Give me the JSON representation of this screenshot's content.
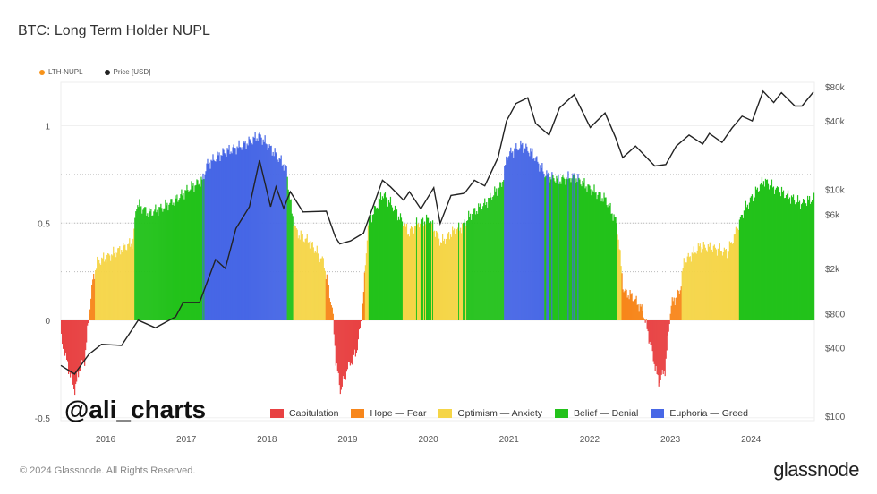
{
  "title": "BTC: Long Term Holder NUPL",
  "watermark": "@ali_charts",
  "footer": "© 2024 Glassnode. All Rights Reserved.",
  "logo": "glassnode",
  "chart_data": {
    "type": "bar",
    "title": "BTC: Long Term Holder NUPL",
    "legend_top": [
      {
        "name": "LTH-NUPL",
        "color": "#f7931a"
      },
      {
        "name": "Price [USD]",
        "color": "#222222"
      }
    ],
    "zones": [
      {
        "name": "Capitulation",
        "color": "#e84142",
        "min": -1,
        "max": 0
      },
      {
        "name": "Hope — Fear",
        "color": "#f7861b",
        "min": 0,
        "max": 0.25
      },
      {
        "name": "Optimism — Anxiety",
        "color": "#f5d547",
        "min": 0.25,
        "max": 0.5
      },
      {
        "name": "Belief — Denial",
        "color": "#23c21b",
        "min": 0.5,
        "max": 0.75
      },
      {
        "name": "Euphoria — Greed",
        "color": "#4767e6",
        "min": 0.75,
        "max": 2
      }
    ],
    "x_ticks": [
      "2016",
      "2017",
      "2018",
      "2019",
      "2020",
      "2021",
      "2022",
      "2023",
      "2024"
    ],
    "y_left_ticks": [
      "1",
      "0.5",
      "0",
      "-0.5"
    ],
    "y_left_range": [
      -0.5,
      1.0
    ],
    "y_right_ticks": [
      "$80k",
      "$40k",
      "$10k",
      "$6k",
      "$2k",
      "$800",
      "$400",
      "$100"
    ],
    "y_right_scale": "log",
    "x_range": [
      "2015-07",
      "2024-11"
    ],
    "nupl": [
      [
        "2015-07-01",
        -0.1
      ],
      [
        "2015-08-15",
        -0.3
      ],
      [
        "2015-09-01",
        -0.36
      ],
      [
        "2015-09-20",
        -0.25
      ],
      [
        "2015-10-15",
        -0.2
      ],
      [
        "2015-11-05",
        0.05
      ],
      [
        "2015-11-20",
        0.2
      ],
      [
        "2015-12-10",
        0.3
      ],
      [
        "2016-02-01",
        0.33
      ],
      [
        "2016-04-01",
        0.37
      ],
      [
        "2016-05-20",
        0.4
      ],
      [
        "2016-06-05",
        0.6
      ],
      [
        "2016-08-01",
        0.55
      ],
      [
        "2016-10-01",
        0.58
      ],
      [
        "2016-12-01",
        0.62
      ],
      [
        "2017-02-01",
        0.68
      ],
      [
        "2017-04-01",
        0.72
      ],
      [
        "2017-04-20",
        0.8
      ],
      [
        "2017-07-01",
        0.86
      ],
      [
        "2017-10-01",
        0.9
      ],
      [
        "2017-12-15",
        0.95
      ],
      [
        "2018-01-20",
        0.9
      ],
      [
        "2018-03-01",
        0.85
      ],
      [
        "2018-04-15",
        0.78
      ],
      [
        "2018-05-10",
        0.55
      ],
      [
        "2018-06-01",
        0.45
      ],
      [
        "2018-08-01",
        0.4
      ],
      [
        "2018-10-01",
        0.3
      ],
      [
        "2018-11-10",
        0.05
      ],
      [
        "2018-11-25",
        -0.2
      ],
      [
        "2018-12-15",
        -0.36
      ],
      [
        "2019-01-15",
        -0.25
      ],
      [
        "2019-03-01",
        -0.15
      ],
      [
        "2019-03-25",
        0.05
      ],
      [
        "2019-04-20",
        0.5
      ],
      [
        "2019-06-25",
        0.65
      ],
      [
        "2019-08-01",
        0.6
      ],
      [
        "2019-09-15",
        0.52
      ],
      [
        "2019-10-20",
        0.45
      ],
      [
        "2019-12-01",
        0.5
      ],
      [
        "2020-01-20",
        0.52
      ],
      [
        "2020-03-15",
        0.4
      ],
      [
        "2020-05-01",
        0.45
      ],
      [
        "2020-06-15",
        0.48
      ],
      [
        "2020-08-01",
        0.55
      ],
      [
        "2020-10-01",
        0.6
      ],
      [
        "2020-12-15",
        0.7
      ],
      [
        "2021-01-10",
        0.85
      ],
      [
        "2021-03-15",
        0.9
      ],
      [
        "2021-05-01",
        0.86
      ],
      [
        "2021-07-01",
        0.75
      ],
      [
        "2021-09-01",
        0.72
      ],
      [
        "2021-11-10",
        0.74
      ],
      [
        "2022-01-15",
        0.68
      ],
      [
        "2022-04-01",
        0.62
      ],
      [
        "2022-05-20",
        0.5
      ],
      [
        "2022-06-20",
        0.15
      ],
      [
        "2022-08-01",
        0.12
      ],
      [
        "2022-09-15",
        0.05
      ],
      [
        "2022-10-15",
        -0.1
      ],
      [
        "2022-11-25",
        -0.32
      ],
      [
        "2022-12-25",
        -0.25
      ],
      [
        "2023-01-20",
        0.08
      ],
      [
        "2023-03-01",
        0.15
      ],
      [
        "2023-03-20",
        0.3
      ],
      [
        "2023-06-01",
        0.38
      ],
      [
        "2023-08-01",
        0.37
      ],
      [
        "2023-10-01",
        0.35
      ],
      [
        "2023-11-10",
        0.45
      ],
      [
        "2023-12-10",
        0.55
      ],
      [
        "2024-01-15",
        0.62
      ],
      [
        "2024-03-15",
        0.72
      ],
      [
        "2024-05-01",
        0.68
      ],
      [
        "2024-07-01",
        0.64
      ],
      [
        "2024-09-01",
        0.6
      ],
      [
        "2024-11-01",
        0.63
      ]
    ],
    "price": [
      [
        "2015-07-01",
        280
      ],
      [
        "2015-09-01",
        235
      ],
      [
        "2015-11-05",
        350
      ],
      [
        "2016-01-01",
        430
      ],
      [
        "2016-04-01",
        420
      ],
      [
        "2016-06-15",
        700
      ],
      [
        "2016-09-01",
        600
      ],
      [
        "2016-12-01",
        750
      ],
      [
        "2017-01-05",
        1000
      ],
      [
        "2017-03-20",
        1000
      ],
      [
        "2017-06-01",
        2400
      ],
      [
        "2017-07-15",
        2000
      ],
      [
        "2017-09-01",
        4500
      ],
      [
        "2017-11-01",
        7000
      ],
      [
        "2017-12-17",
        18000
      ],
      [
        "2018-02-05",
        7000
      ],
      [
        "2018-03-01",
        10500
      ],
      [
        "2018-04-05",
        6800
      ],
      [
        "2018-05-05",
        9500
      ],
      [
        "2018-07-01",
        6300
      ],
      [
        "2018-10-15",
        6400
      ],
      [
        "2018-11-25",
        3800
      ],
      [
        "2018-12-15",
        3300
      ],
      [
        "2019-02-01",
        3500
      ],
      [
        "2019-04-01",
        4100
      ],
      [
        "2019-06-26",
        12000
      ],
      [
        "2019-08-01",
        10500
      ],
      [
        "2019-09-30",
        8000
      ],
      [
        "2019-10-26",
        9500
      ],
      [
        "2019-12-17",
        6700
      ],
      [
        "2020-02-13",
        10300
      ],
      [
        "2020-03-13",
        5000
      ],
      [
        "2020-05-01",
        8800
      ],
      [
        "2020-07-01",
        9200
      ],
      [
        "2020-08-15",
        12000
      ],
      [
        "2020-10-01",
        10700
      ],
      [
        "2020-11-30",
        19000
      ],
      [
        "2021-01-08",
        40000
      ],
      [
        "2021-02-20",
        57000
      ],
      [
        "2021-04-14",
        64000
      ],
      [
        "2021-05-20",
        38000
      ],
      [
        "2021-07-20",
        30000
      ],
      [
        "2021-09-05",
        52000
      ],
      [
        "2021-11-10",
        68000
      ],
      [
        "2022-01-22",
        35000
      ],
      [
        "2022-03-30",
        47000
      ],
      [
        "2022-05-15",
        29000
      ],
      [
        "2022-06-18",
        19000
      ],
      [
        "2022-08-15",
        24000
      ],
      [
        "2022-11-10",
        16000
      ],
      [
        "2022-12-30",
        16500
      ],
      [
        "2023-02-15",
        24000
      ],
      [
        "2023-04-14",
        30000
      ],
      [
        "2023-06-15",
        25000
      ],
      [
        "2023-07-15",
        31000
      ],
      [
        "2023-09-10",
        25800
      ],
      [
        "2023-10-25",
        34500
      ],
      [
        "2023-12-10",
        44000
      ],
      [
        "2024-01-25",
        40000
      ],
      [
        "2024-03-14",
        73000
      ],
      [
        "2024-05-01",
        58000
      ],
      [
        "2024-06-05",
        71000
      ],
      [
        "2024-08-05",
        54000
      ],
      [
        "2024-09-06",
        54000
      ],
      [
        "2024-10-28",
        72000
      ]
    ]
  }
}
